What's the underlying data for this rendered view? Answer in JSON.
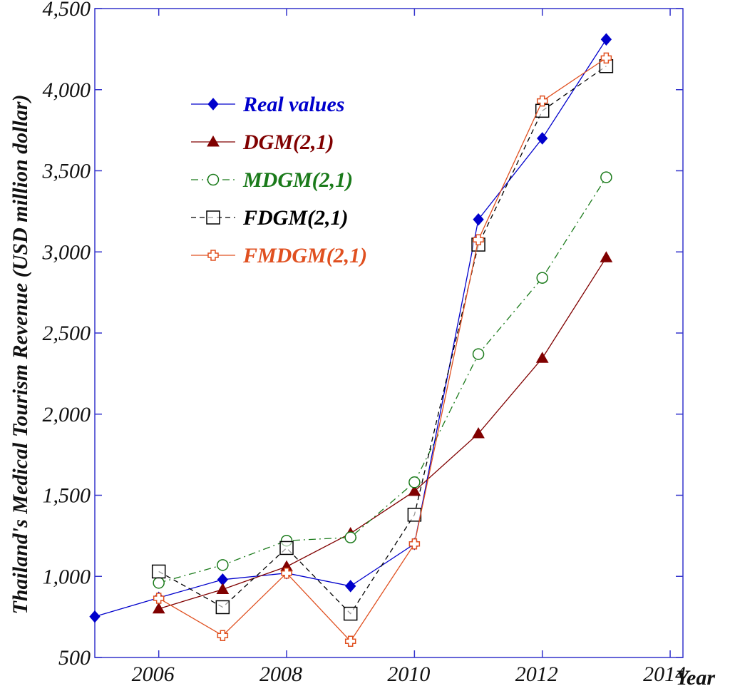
{
  "chart_data": {
    "type": "line",
    "title": "",
    "xlabel": "Year",
    "ylabel": "Thailand's Medical Tourism Revenue (USD million dollar)",
    "xlim": [
      2005,
      2014.2
    ],
    "ylim": [
      500,
      4500
    ],
    "x_ticks": [
      2006,
      2008,
      2010,
      2012,
      2014
    ],
    "x_tick_labels": [
      "2006",
      "2008",
      "2010",
      "2012",
      "2014"
    ],
    "y_ticks": [
      500,
      1000,
      1500,
      2000,
      2500,
      3000,
      3500,
      4000,
      4500
    ],
    "y_tick_labels": [
      "500",
      "1,000",
      "1,500",
      "2,000",
      "2,500",
      "3,000",
      "3,500",
      "4,000",
      "4,500"
    ],
    "grid": false,
    "legend_position": "top-left",
    "series": [
      {
        "name": "Real values",
        "color": "#0000cc",
        "marker": "diamond",
        "line": "solid",
        "x": [
          2005,
          2006,
          2007,
          2008,
          2009,
          2010,
          2011,
          2012,
          2013
        ],
        "values": [
          752,
          868,
          980,
          1020,
          940,
          1200,
          3200,
          3700,
          4310
        ]
      },
      {
        "name": "DGM(2,1)",
        "color": "#800000",
        "marker": "triangle",
        "line": "solid",
        "x": [
          2006,
          2007,
          2008,
          2009,
          2010,
          2011,
          2012,
          2013
        ],
        "values": [
          800,
          920,
          1060,
          1265,
          1525,
          1880,
          2345,
          2965
        ]
      },
      {
        "name": "MDGM(2,1)",
        "color": "#1a7a1a",
        "marker": "circle",
        "line": "dashdot",
        "x": [
          2006,
          2007,
          2008,
          2009,
          2010,
          2011,
          2012,
          2013
        ],
        "values": [
          960,
          1070,
          1220,
          1240,
          1580,
          2370,
          2840,
          3460
        ]
      },
      {
        "name": "FDGM(2,1)",
        "color": "#000000",
        "marker": "square",
        "line": "dashed",
        "x": [
          2006,
          2007,
          2008,
          2009,
          2010,
          2011,
          2012,
          2013
        ],
        "values": [
          1030,
          810,
          1175,
          770,
          1380,
          3045,
          3870,
          4145
        ]
      },
      {
        "name": "FMDGM(2,1)",
        "color": "#e05020",
        "marker": "cross",
        "line": "solid",
        "x": [
          2006,
          2007,
          2008,
          2009,
          2010,
          2011,
          2012,
          2013
        ],
        "values": [
          865,
          635,
          1020,
          600,
          1200,
          3075,
          3930,
          4195
        ]
      }
    ]
  }
}
